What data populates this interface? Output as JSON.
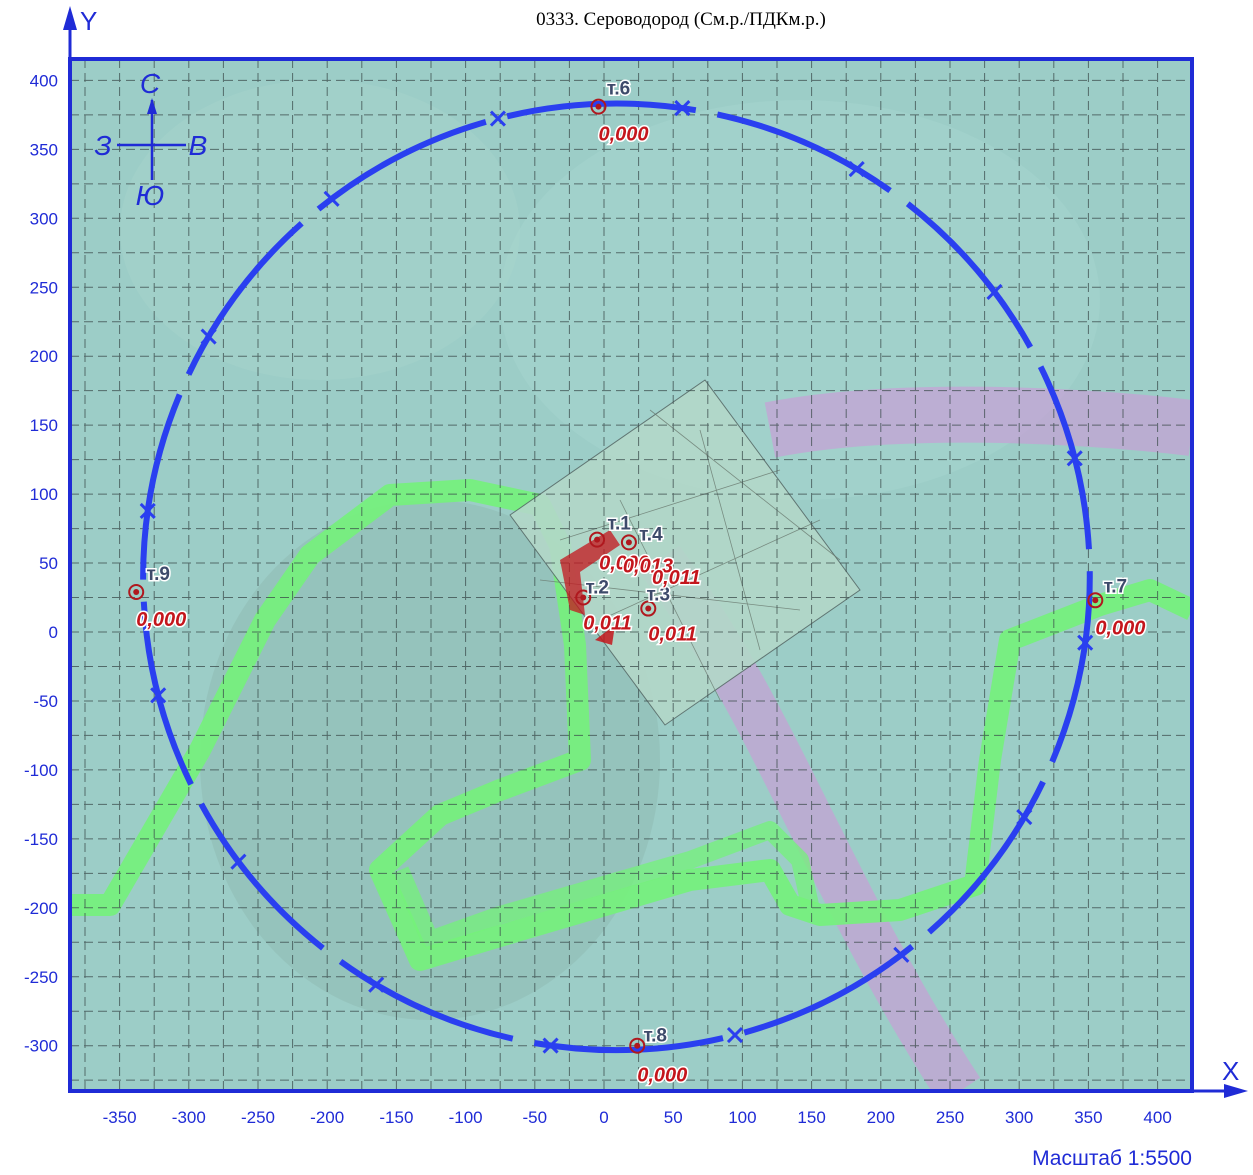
{
  "title": "0333. Сероводород  (См.р./ПДКм.р.)",
  "axes": {
    "x_label": "X",
    "y_label": "Y",
    "x_range": [
      -390,
      420
    ],
    "y_range": [
      -335,
      415
    ],
    "x_ticks": [
      -350,
      -300,
      -250,
      -200,
      -150,
      -100,
      -50,
      0,
      50,
      100,
      150,
      200,
      250,
      300,
      350,
      400
    ],
    "y_ticks": [
      400,
      350,
      300,
      250,
      200,
      150,
      100,
      50,
      0,
      -50,
      -100,
      -150,
      -200,
      -250,
      -300
    ],
    "x_tick_labels": [
      "-350",
      "-300",
      "-250",
      "-200",
      "-150",
      "-100",
      "-50",
      "0",
      "50",
      "100",
      "150",
      "200",
      "250",
      "300",
      "350",
      "400"
    ],
    "y_tick_labels": [
      "400",
      "350",
      "300",
      "250",
      "200",
      "150",
      "100",
      "50",
      "0",
      "-50",
      "-100",
      "-150",
      "-200",
      "-250",
      "-300"
    ]
  },
  "compass": {
    "north": "С",
    "south": "Ю",
    "west": "З",
    "east": "В"
  },
  "scale_label": "Масштаб  1:5500",
  "boundary": {
    "center": [
      9,
      40
    ],
    "radius": 342
  },
  "points": [
    {
      "label": "т.1",
      "value": "0,000",
      "x": -5,
      "y": 67
    },
    {
      "label": "т.2",
      "value": "0,011",
      "x": -15,
      "y": 25
    },
    {
      "label": "т.3",
      "value": "0,011",
      "x": 32,
      "y": 17
    },
    {
      "label": "т.4",
      "value": "0,013",
      "x": 18,
      "y": 65
    },
    {
      "label": "т.6",
      "value": "0,000",
      "x": -4,
      "y": 381
    },
    {
      "label": "т.7",
      "value": "0,000",
      "x": 355,
      "y": 23
    },
    {
      "label": "т.8",
      "value": "0,000",
      "x": 24,
      "y": -300
    },
    {
      "label": "т.9",
      "value": "0,000",
      "x": -338,
      "y": 29
    }
  ],
  "extra_values": [
    "0,011"
  ],
  "colors": {
    "frame": "#1f2bd6",
    "boundary": "#2a3ff0",
    "map_bg": "#9ccdc7",
    "grid": "#3a4a4a",
    "road": "#74f27a",
    "pipeline": "#c79fd6",
    "point": "#b0181e"
  }
}
